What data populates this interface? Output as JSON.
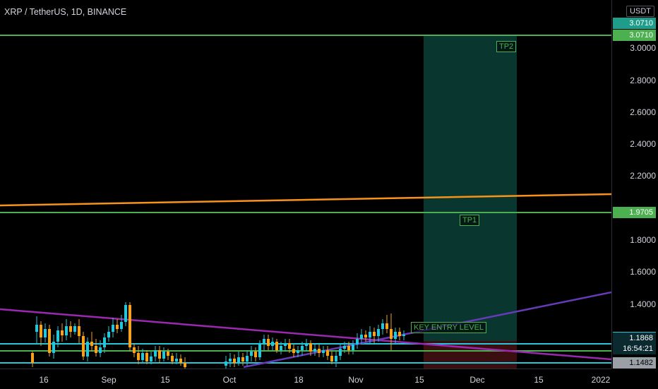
{
  "header": {
    "title": "XRP / TetherUS, 1D, BINANCE"
  },
  "price_axis": {
    "currency": "USDT",
    "ticks": [
      {
        "label": "3.0000"
      },
      {
        "label": "2.8000"
      },
      {
        "label": "2.6000"
      },
      {
        "label": "2.4000"
      },
      {
        "label": "2.2000"
      },
      {
        "label": "1.8000"
      },
      {
        "label": "1.6000"
      },
      {
        "label": "1.4000"
      }
    ],
    "badges": {
      "tp2_top": "3.0710",
      "tp2": "3.0710",
      "tp1": "1.9705",
      "last_price": "1.1868",
      "countdown": "16:54:21",
      "support": "1.1482"
    }
  },
  "time_axis": {
    "labels": [
      "16",
      "Sep",
      "15",
      "Oct",
      "18",
      "Nov",
      "15",
      "Dec",
      "15",
      "2022"
    ]
  },
  "annotations": {
    "tp2": "TP2",
    "tp1": "TP1",
    "key_entry": "KEY ENTRY LEVEL"
  },
  "colors": {
    "background": "#000000",
    "tp_lines": "#4caf50",
    "orange_trend": "#f7931a",
    "purple_trend": "#9c27b0",
    "blue_trend": "#673ab7",
    "support_cyan": "#26c6da",
    "bull_candle": "#26c6da",
    "bear_candle": "#f7a21b",
    "target_zone": "#0d3b33",
    "stop_zone": "#3a0e0e"
  }
}
